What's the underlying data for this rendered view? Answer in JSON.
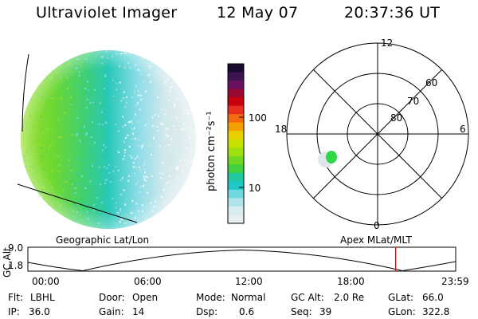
{
  "header": {
    "instrument": "Ultraviolet Imager",
    "date": "12 May 07",
    "time": "20:37:36 UT"
  },
  "colorbar": {
    "unit_label": "photon cm⁻²s⁻¹",
    "ticks": [
      "100",
      "10"
    ],
    "colors": [
      "#1a0a2e",
      "#3c1450",
      "#6a1060",
      "#9a0a30",
      "#c80010",
      "#e83020",
      "#f56a10",
      "#f5a000",
      "#e8d000",
      "#c8e000",
      "#a0e010",
      "#70d820",
      "#40d040",
      "#20c8a0",
      "#20c8c8",
      "#70d8e0",
      "#b0e4ec",
      "#d8ecf0",
      "#e6eef0"
    ]
  },
  "polar_plot": {
    "mlt_labels": {
      "top": "12",
      "left": "18",
      "right": "6",
      "bottom": "0"
    },
    "lat_labels": [
      "60",
      "70",
      "80"
    ]
  },
  "altitude_plot": {
    "left_label": "Geographic Lat/Lon",
    "right_label": "Apex MLat/MLT",
    "y_axis_label": "GC Alt",
    "y_ticks": [
      "9.0",
      "1.8"
    ],
    "x_ticks": [
      "00:00",
      "06:00",
      "12:00",
      "18:00",
      "23:59"
    ],
    "current_time_hours": 20.63,
    "marker_color": "#e00000"
  },
  "footer": {
    "row1": [
      {
        "key": "Flt:",
        "value": "LBHL"
      },
      {
        "key": "Door:",
        "value": "Open"
      },
      {
        "key": "Mode:",
        "value": "Normal"
      },
      {
        "key": "GC Alt:",
        "value": "2.0 Re"
      },
      {
        "key": "GLat:",
        "value": "66.0"
      }
    ],
    "row2": [
      {
        "key": "IP:",
        "value": "36.0"
      },
      {
        "key": "Gain:",
        "value": "14"
      },
      {
        "key": "Dsp:",
        "value": "0.6"
      },
      {
        "key": "Seq:",
        "value": "39"
      },
      {
        "key": "GLon:",
        "value": "322.8"
      }
    ]
  }
}
